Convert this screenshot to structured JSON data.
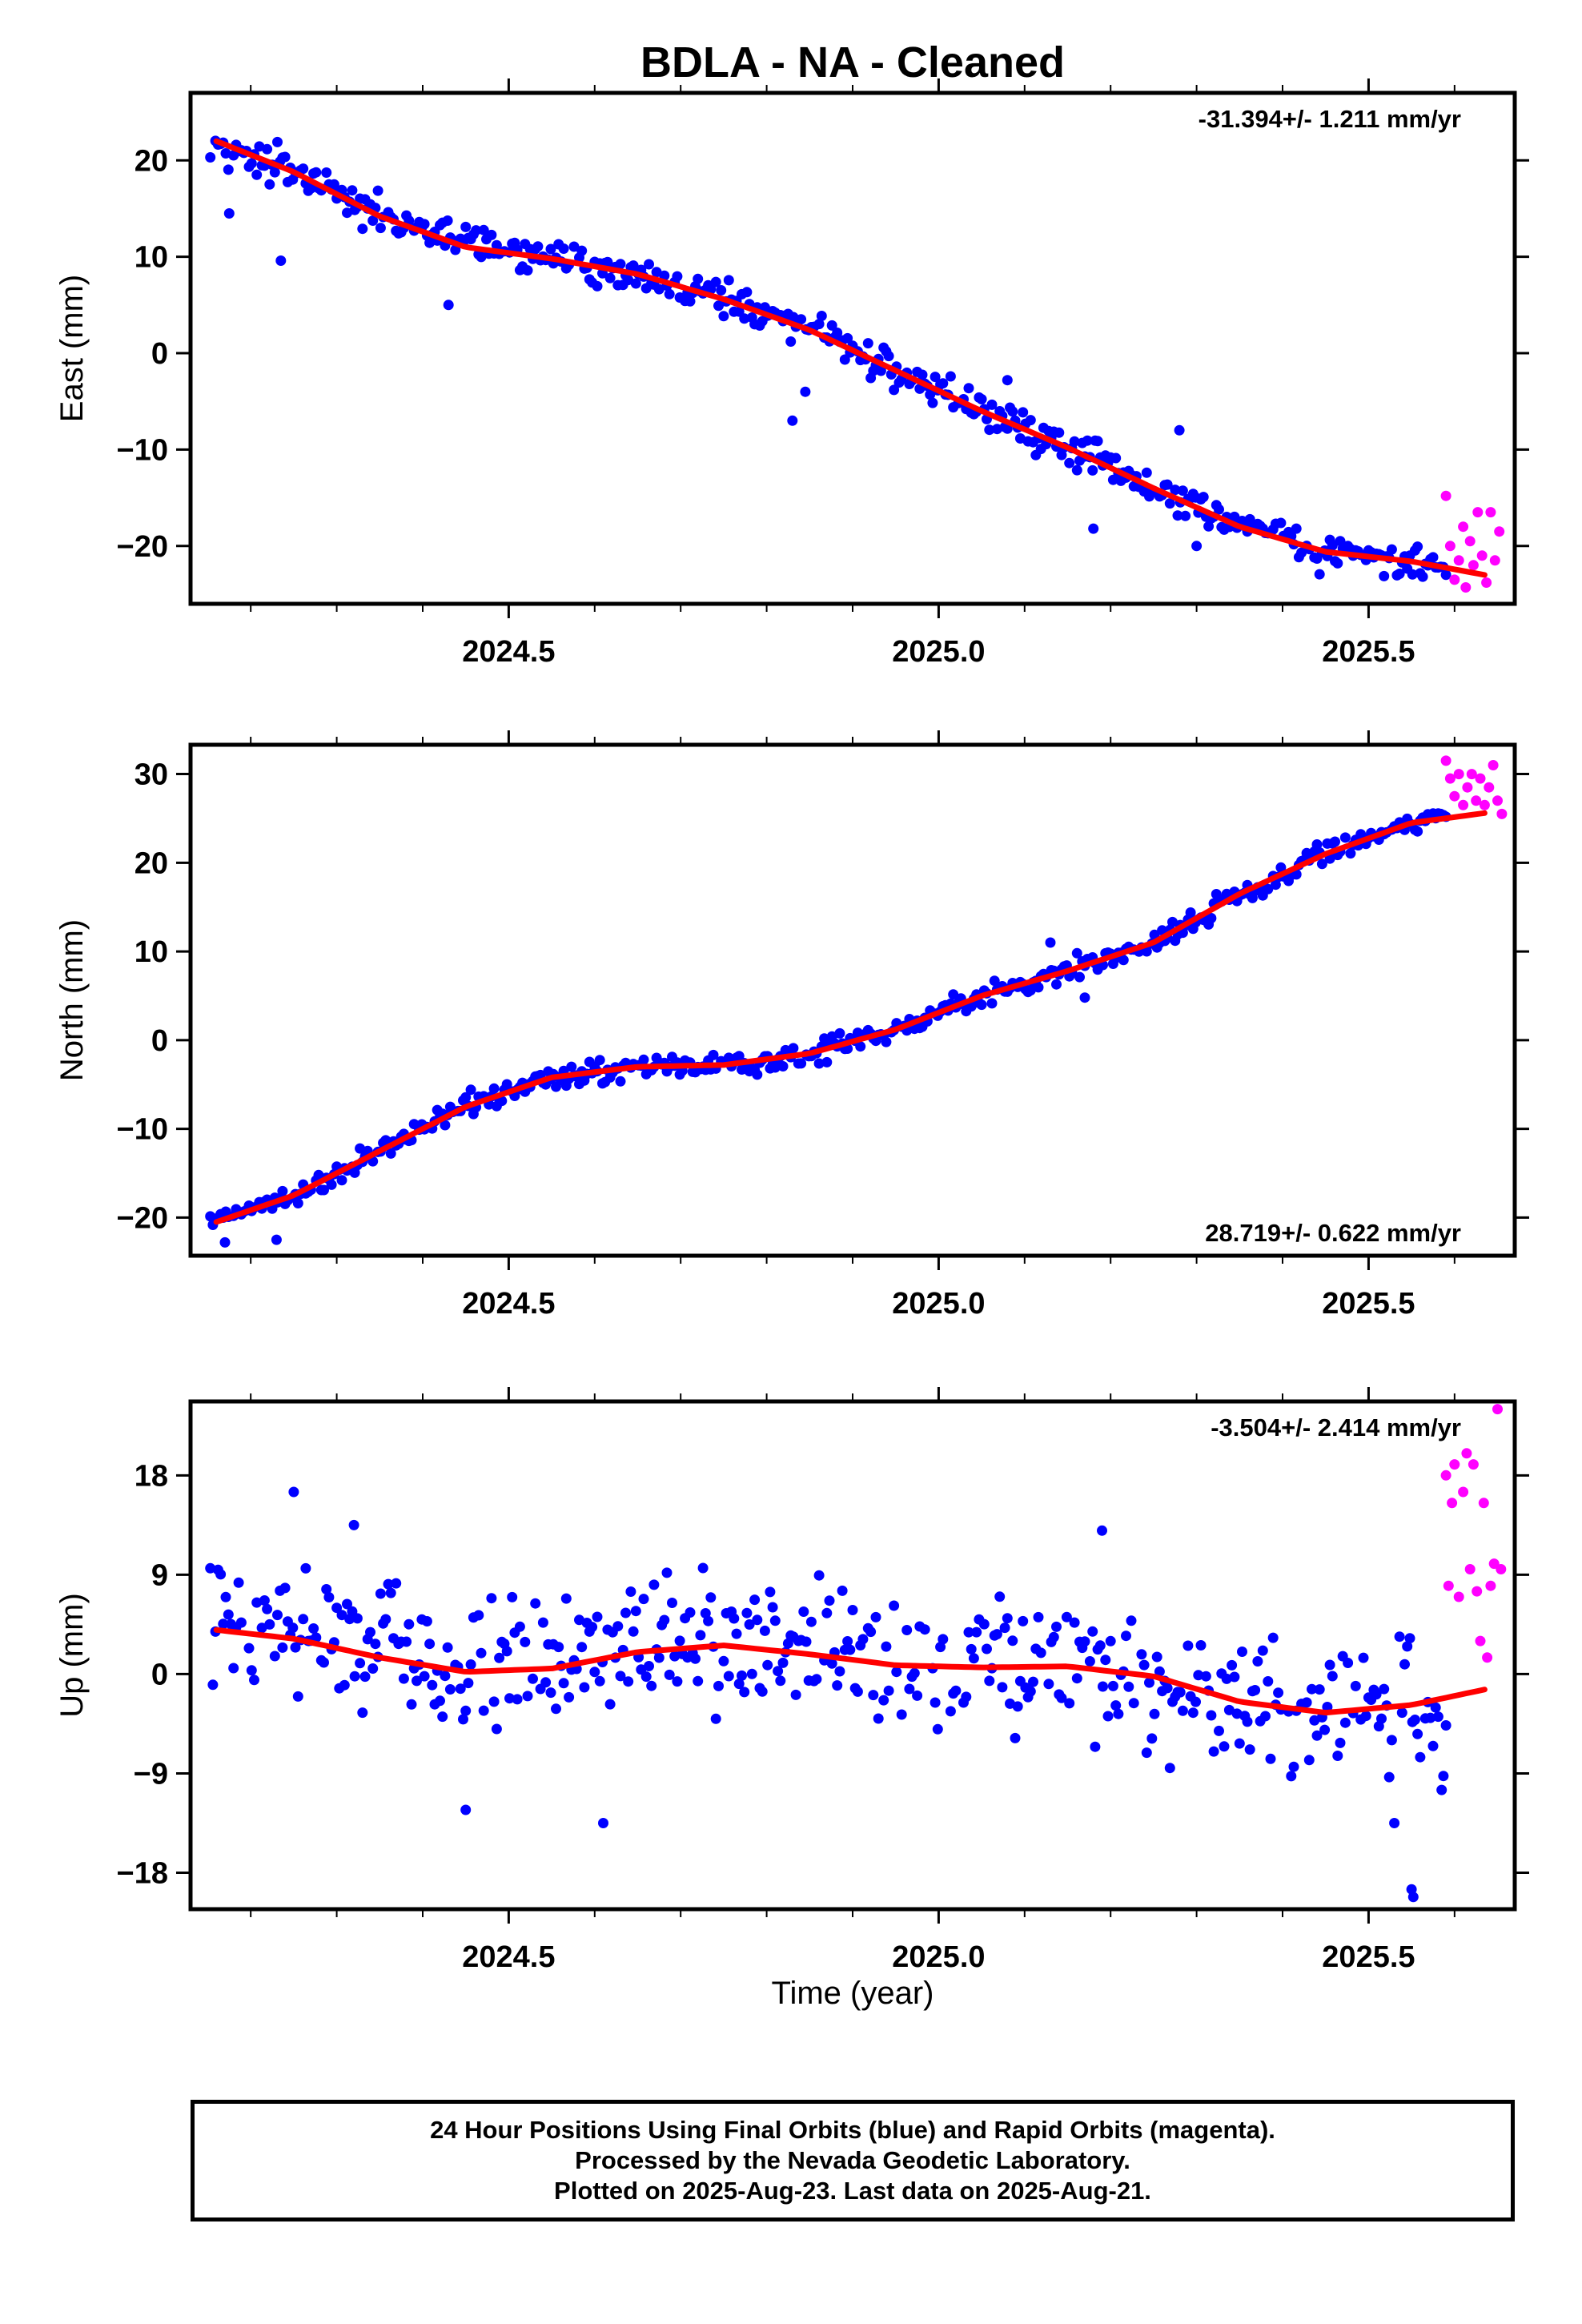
{
  "title": "BDLA  - NA - Cleaned",
  "xlabel": "Time (year)",
  "notes": [
    "24 Hour Positions Using Final Orbits (blue) and Rapid Orbits (magenta).",
    "Processed by the Nevada Geodetic Laboratory.",
    "Plotted on 2025-Aug-23. Last data on 2025-Aug-21."
  ],
  "colors": {
    "final": "#0000ff",
    "rapid": "#ff00ff",
    "fit": "#ff0000",
    "frame": "#000000"
  },
  "chart_data": [
    {
      "type": "scatter",
      "component": "east",
      "ylabel": "East (mm)",
      "rate": "-31.394+/- 1.211 mm/yr",
      "rate_position": "top-right",
      "xlim": [
        2024.13,
        2025.67
      ],
      "ylim": [
        -26,
        27
      ],
      "xticks": [
        "2024.5",
        "2025.0",
        "2025.5"
      ],
      "xtick_values": [
        2024.5,
        2025.0,
        2025.5
      ],
      "yticks": [
        "−20",
        "−10",
        "0",
        "10",
        "20"
      ],
      "ytick_values": [
        -20,
        -10,
        0,
        10,
        20
      ],
      "fit_x": [
        2024.16,
        2024.25,
        2024.35,
        2024.45,
        2024.55,
        2024.65,
        2024.75,
        2024.85,
        2024.95,
        2025.05,
        2025.15,
        2025.25,
        2025.35,
        2025.45,
        2025.55,
        2025.635
      ],
      "fit_y": [
        22.0,
        18.8,
        14.2,
        11.0,
        9.8,
        8.2,
        5.6,
        2.4,
        -1.8,
        -6.0,
        -9.8,
        -14.0,
        -18.0,
        -20.6,
        -21.6,
        -23.0
      ],
      "final_trend_x": [
        2024.16,
        2024.25,
        2024.35,
        2024.45,
        2024.55,
        2024.65,
        2024.75,
        2024.85,
        2024.95,
        2025.05,
        2025.15,
        2025.25,
        2025.35,
        2025.45,
        2025.59
      ],
      "final_trend_y": [
        22.0,
        18.8,
        14.2,
        11.0,
        9.8,
        8.2,
        5.6,
        2.4,
        -1.8,
        -6.0,
        -9.8,
        -14.0,
        -18.0,
        -20.6,
        -21.9
      ],
      "final_range": [
        2024.153,
        2025.59
      ],
      "final_scatter": 1.3,
      "outliers": [
        [
          2024.175,
          14.5
        ],
        [
          2024.235,
          9.6
        ],
        [
          2024.43,
          5.0
        ],
        [
          2024.83,
          -7.0
        ],
        [
          2024.845,
          -4.0
        ],
        [
          2025.08,
          -2.8
        ],
        [
          2025.18,
          -18.2
        ],
        [
          2025.28,
          -8.0
        ],
        [
          2025.3,
          -20.0
        ]
      ],
      "rapid": [
        [
          2025.59,
          -14.8
        ],
        [
          2025.595,
          -20.0
        ],
        [
          2025.6,
          -23.5
        ],
        [
          2025.605,
          -21.5
        ],
        [
          2025.61,
          -18.0
        ],
        [
          2025.613,
          -24.3
        ],
        [
          2025.618,
          -19.5
        ],
        [
          2025.622,
          -22.0
        ],
        [
          2025.627,
          -16.5
        ],
        [
          2025.632,
          -21.0
        ],
        [
          2025.637,
          -23.8
        ],
        [
          2025.642,
          -16.5
        ],
        [
          2025.647,
          -21.5
        ],
        [
          2025.652,
          -18.5
        ]
      ]
    },
    {
      "type": "scatter",
      "component": "north",
      "ylabel": "North (mm)",
      "rate": "28.719+/- 0.622 mm/yr",
      "rate_position": "bottom-right",
      "xlim": [
        2024.13,
        2025.67
      ],
      "ylim": [
        -24.3,
        33.3
      ],
      "xticks": [
        "2024.5",
        "2025.0",
        "2025.5"
      ],
      "xtick_values": [
        2024.5,
        2025.0,
        2025.5
      ],
      "yticks": [
        "−20",
        "−10",
        "0",
        "10",
        "20",
        "30"
      ],
      "ytick_values": [
        -20,
        -10,
        0,
        10,
        20,
        30
      ],
      "fit_x": [
        2024.16,
        2024.25,
        2024.35,
        2024.45,
        2024.55,
        2024.65,
        2024.75,
        2024.85,
        2024.95,
        2025.05,
        2025.15,
        2025.25,
        2025.35,
        2025.45,
        2025.55,
        2025.635
      ],
      "fit_y": [
        -20.5,
        -17.5,
        -12.5,
        -7.5,
        -4.2,
        -3.0,
        -2.8,
        -1.5,
        1.2,
        5.0,
        7.8,
        11.0,
        16.5,
        21.0,
        24.5,
        25.6
      ],
      "final_trend_x": [
        2024.16,
        2024.25,
        2024.35,
        2024.45,
        2024.55,
        2024.65,
        2024.75,
        2024.85,
        2024.95,
        2025.05,
        2025.15,
        2025.25,
        2025.35,
        2025.45,
        2025.55,
        2025.59
      ],
      "final_trend_y": [
        -20.5,
        -17.5,
        -12.5,
        -7.5,
        -4.2,
        -3.0,
        -2.8,
        -1.5,
        1.2,
        5.0,
        7.8,
        11.0,
        16.5,
        21.0,
        24.5,
        25.5
      ],
      "final_range": [
        2024.153,
        2025.59
      ],
      "final_scatter": 0.9,
      "outliers": [
        [
          2024.17,
          -22.8
        ],
        [
          2024.23,
          -22.5
        ],
        [
          2025.17,
          4.8
        ],
        [
          2025.13,
          11.0
        ]
      ],
      "rapid": [
        [
          2025.59,
          31.5
        ],
        [
          2025.595,
          29.5
        ],
        [
          2025.6,
          27.5
        ],
        [
          2025.605,
          30.0
        ],
        [
          2025.61,
          26.5
        ],
        [
          2025.615,
          28.5
        ],
        [
          2025.62,
          30.0
        ],
        [
          2025.625,
          27.0
        ],
        [
          2025.63,
          29.5
        ],
        [
          2025.635,
          26.5
        ],
        [
          2025.64,
          28.5
        ],
        [
          2025.645,
          31.0
        ],
        [
          2025.65,
          27.0
        ],
        [
          2025.655,
          25.5
        ]
      ]
    },
    {
      "type": "scatter",
      "component": "up",
      "ylabel": "Up (mm)",
      "rate": "-3.504+/- 2.414 mm/yr",
      "rate_position": "top-right",
      "xlim": [
        2024.13,
        2025.67
      ],
      "ylim": [
        -21.3,
        24.7
      ],
      "xticks": [
        "2024.5",
        "2025.0",
        "2025.5"
      ],
      "xtick_values": [
        2024.5,
        2025.0,
        2025.5
      ],
      "yticks": [
        "−18",
        "−9",
        "0",
        "9",
        "18"
      ],
      "ytick_values": [
        -18,
        -9,
        0,
        9,
        18
      ],
      "fit_x": [
        2024.16,
        2024.25,
        2024.35,
        2024.45,
        2024.55,
        2024.65,
        2024.75,
        2024.85,
        2024.95,
        2025.05,
        2025.15,
        2025.25,
        2025.35,
        2025.45,
        2025.55,
        2025.635
      ],
      "fit_y": [
        4.0,
        3.2,
        1.5,
        0.2,
        0.5,
        2.0,
        2.6,
        1.8,
        0.8,
        0.6,
        0.7,
        -0.2,
        -2.5,
        -3.5,
        -2.8,
        -1.4
      ],
      "final_trend_x": [
        2024.16,
        2024.25,
        2024.35,
        2024.45,
        2024.55,
        2024.65,
        2024.75,
        2024.85,
        2024.95,
        2025.05,
        2025.15,
        2025.25,
        2025.35,
        2025.45,
        2025.59
      ],
      "final_trend_y": [
        4.0,
        3.2,
        1.5,
        0.2,
        0.5,
        2.0,
        2.6,
        1.8,
        0.8,
        0.6,
        0.7,
        -0.2,
        -2.5,
        -3.5,
        -2.5
      ],
      "final_range": [
        2024.153,
        2025.59
      ],
      "final_scatter": 4.3,
      "outliers": [
        [
          2024.25,
          16.5
        ],
        [
          2024.32,
          13.5
        ],
        [
          2024.45,
          -12.3
        ],
        [
          2024.61,
          -13.5
        ],
        [
          2025.19,
          13.0
        ],
        [
          2025.55,
          -19.5
        ],
        [
          2025.552,
          -20.2
        ],
        [
          2025.53,
          -13.5
        ],
        [
          2025.585,
          -10.5
        ]
      ],
      "rapid": [
        [
          2025.59,
          18.0
        ],
        [
          2025.593,
          8.0
        ],
        [
          2025.597,
          15.5
        ],
        [
          2025.6,
          19.0
        ],
        [
          2025.605,
          7.0
        ],
        [
          2025.61,
          16.5
        ],
        [
          2025.614,
          20.0
        ],
        [
          2025.618,
          9.5
        ],
        [
          2025.622,
          19.0
        ],
        [
          2025.626,
          7.5
        ],
        [
          2025.63,
          3.0
        ],
        [
          2025.634,
          15.5
        ],
        [
          2025.638,
          1.5
        ],
        [
          2025.642,
          8.0
        ],
        [
          2025.646,
          10.0
        ],
        [
          2025.65,
          24.0
        ],
        [
          2025.654,
          9.5
        ]
      ]
    }
  ]
}
